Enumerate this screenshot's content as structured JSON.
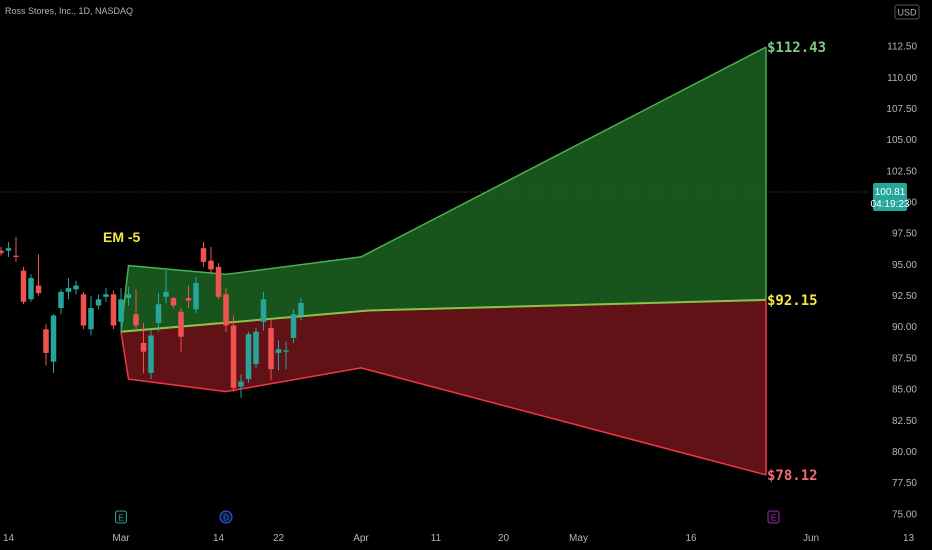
{
  "header": {
    "symbol_title": "Ross Stores, Inc., 1D, NASDAQ",
    "currency": "USD"
  },
  "price_tag": {
    "price": "100.81",
    "countdown": "04:19:23"
  },
  "colors": {
    "background": "#000000",
    "up": "#26a69a",
    "down": "#ef5350",
    "upper_band": "#4caf50",
    "lower_band": "#f23645",
    "mid_line": "#8bc34a",
    "upper_fill": "#1b5e20",
    "lower_fill": "#6b1418",
    "target_upper": "#81c784",
    "target_mid": "#f5e642",
    "target_lower": "#f06c75"
  },
  "annotation": {
    "em_label": "EM -5"
  },
  "chart_data": {
    "type": "candlestick",
    "title": "",
    "ylim": [
      74.5,
      114.2
    ],
    "y_ticks": [
      75.0,
      77.5,
      80.0,
      82.5,
      85.0,
      87.5,
      90.0,
      92.5,
      95.0,
      97.5,
      100.0,
      102.5,
      105.0,
      107.5,
      110.0,
      112.5
    ],
    "x_tick_labels": [
      "14",
      "Mar",
      "14",
      "22",
      "Apr",
      "11",
      "20",
      "May",
      "16",
      "Jun",
      "13"
    ],
    "x_tick_days": [
      -15,
      0,
      13,
      21,
      32,
      42,
      51,
      61,
      76,
      92,
      105
    ],
    "x_range_days": [
      -20,
      107
    ],
    "last_price": 100.81,
    "candles": [
      {
        "day": -21,
        "o": 96.3,
        "h": 98.0,
        "l": 93.8,
        "c": 97.2
      },
      {
        "day": -20,
        "o": 94.1,
        "h": 97.2,
        "l": 93.7,
        "c": 96.8
      },
      {
        "day": -19,
        "o": 96.7,
        "h": 97.0,
        "l": 93.2,
        "c": 94.3
      },
      {
        "day": -18,
        "o": 94.8,
        "h": 96.1,
        "l": 93.8,
        "c": 94.5
      },
      {
        "day": -17,
        "o": 95.6,
        "h": 97.0,
        "l": 94.8,
        "c": 96.2
      },
      {
        "day": -16,
        "o": 96.1,
        "h": 96.4,
        "l": 95.7,
        "c": 95.9
      },
      {
        "day": -15,
        "o": 96.1,
        "h": 96.8,
        "l": 95.6,
        "c": 96.3
      },
      {
        "day": -14,
        "o": 95.7,
        "h": 97.2,
        "l": 95.2,
        "c": 95.6
      },
      {
        "day": -13,
        "o": 94.5,
        "h": 94.8,
        "l": 91.8,
        "c": 92.0
      },
      {
        "day": -12,
        "o": 92.2,
        "h": 94.2,
        "l": 92.0,
        "c": 93.9
      },
      {
        "day": -11,
        "o": 93.3,
        "h": 95.8,
        "l": 92.5,
        "c": 92.7
      },
      {
        "day": -10,
        "o": 89.8,
        "h": 90.2,
        "l": 86.9,
        "c": 87.9
      },
      {
        "day": -9,
        "o": 87.2,
        "h": 91.0,
        "l": 86.3,
        "c": 90.9
      },
      {
        "day": -8,
        "o": 91.5,
        "h": 93.0,
        "l": 91.0,
        "c": 92.8
      },
      {
        "day": -7,
        "o": 92.8,
        "h": 93.9,
        "l": 92.2,
        "c": 93.1
      },
      {
        "day": -6,
        "o": 93.0,
        "h": 93.7,
        "l": 92.6,
        "c": 93.3
      },
      {
        "day": -5,
        "o": 92.6,
        "h": 92.8,
        "l": 89.8,
        "c": 90.1
      },
      {
        "day": -4,
        "o": 89.8,
        "h": 92.5,
        "l": 89.3,
        "c": 91.5
      },
      {
        "day": -3,
        "o": 91.7,
        "h": 92.6,
        "l": 91.4,
        "c": 92.2
      },
      {
        "day": -2,
        "o": 92.4,
        "h": 93.1,
        "l": 92.0,
        "c": 92.6
      },
      {
        "day": -1,
        "o": 92.6,
        "h": 92.9,
        "l": 89.8,
        "c": 90.1
      },
      {
        "day": 0,
        "o": 90.4,
        "h": 93.1,
        "l": 89.6,
        "c": 92.2
      },
      {
        "day": 1,
        "o": 92.3,
        "h": 93.2,
        "l": 91.7,
        "c": 92.6
      },
      {
        "day": 2,
        "o": 91.0,
        "h": 93.0,
        "l": 89.7,
        "c": 90.1
      },
      {
        "day": 3,
        "o": 88.7,
        "h": 90.3,
        "l": 86.3,
        "c": 88.0
      },
      {
        "day": 4,
        "o": 86.3,
        "h": 89.7,
        "l": 85.8,
        "c": 89.3
      },
      {
        "day": 5,
        "o": 90.3,
        "h": 92.7,
        "l": 89.6,
        "c": 91.8
      },
      {
        "day": 6,
        "o": 92.4,
        "h": 94.5,
        "l": 91.9,
        "c": 92.8
      },
      {
        "day": 7,
        "o": 92.3,
        "h": 92.4,
        "l": 91.5,
        "c": 91.7
      },
      {
        "day": 8,
        "o": 91.2,
        "h": 91.5,
        "l": 88.0,
        "c": 89.2
      },
      {
        "day": 9,
        "o": 92.3,
        "h": 93.3,
        "l": 91.5,
        "c": 92.1
      },
      {
        "day": 10,
        "o": 91.4,
        "h": 94.0,
        "l": 91.1,
        "c": 93.5
      },
      {
        "day": 11,
        "o": 96.3,
        "h": 96.8,
        "l": 94.8,
        "c": 95.2
      },
      {
        "day": 12,
        "o": 95.3,
        "h": 96.4,
        "l": 94.3,
        "c": 94.6
      },
      {
        "day": 13,
        "o": 94.8,
        "h": 95.1,
        "l": 92.2,
        "c": 92.4
      },
      {
        "day": 14,
        "o": 92.6,
        "h": 93.1,
        "l": 89.6,
        "c": 90.1
      },
      {
        "day": 15,
        "o": 90.1,
        "h": 90.9,
        "l": 84.8,
        "c": 85.1
      },
      {
        "day": 16,
        "o": 85.2,
        "h": 86.2,
        "l": 84.3,
        "c": 85.6
      },
      {
        "day": 17,
        "o": 85.8,
        "h": 89.6,
        "l": 85.5,
        "c": 89.4
      },
      {
        "day": 18,
        "o": 87.0,
        "h": 89.9,
        "l": 86.7,
        "c": 89.6
      },
      {
        "day": 19,
        "o": 90.4,
        "h": 92.8,
        "l": 89.7,
        "c": 92.2
      },
      {
        "day": 20,
        "o": 89.9,
        "h": 90.6,
        "l": 85.7,
        "c": 86.6
      },
      {
        "day": 21,
        "o": 87.9,
        "h": 88.9,
        "l": 86.5,
        "c": 88.2
      },
      {
        "day": 22,
        "o": 88.0,
        "h": 88.8,
        "l": 86.6,
        "c": 88.1
      },
      {
        "day": 23,
        "o": 89.1,
        "h": 91.4,
        "l": 88.7,
        "c": 91.0
      },
      {
        "day": 24,
        "o": 90.9,
        "h": 92.3,
        "l": 90.5,
        "c": 91.9
      }
    ],
    "bands": {
      "anchor_day": 0,
      "anchor_price": 89.6,
      "end_day": 86,
      "upper": [
        {
          "day": 0,
          "value": 89.6
        },
        {
          "day": 1,
          "value": 94.9
        },
        {
          "day": 14,
          "value": 94.2
        },
        {
          "day": 32,
          "value": 95.6
        },
        {
          "day": 86,
          "value": 112.43
        }
      ],
      "mid": [
        {
          "day": 0,
          "value": 89.6
        },
        {
          "day": 33,
          "value": 91.3
        },
        {
          "day": 86,
          "value": 92.15
        }
      ],
      "lower": [
        {
          "day": 0,
          "value": 89.6
        },
        {
          "day": 1,
          "value": 85.8
        },
        {
          "day": 14,
          "value": 84.8
        },
        {
          "day": 32,
          "value": 86.7
        },
        {
          "day": 86,
          "value": 78.12
        }
      ]
    },
    "targets": [
      {
        "label": "$112.43",
        "value": 112.43,
        "role": "upper"
      },
      {
        "label": "$92.15",
        "value": 92.15,
        "role": "mid"
      },
      {
        "label": "$78.12",
        "value": 78.12,
        "role": "lower"
      }
    ],
    "event_markers": [
      {
        "day": 0,
        "label": "E",
        "kind": "earnings"
      },
      {
        "day": 14,
        "label": "D",
        "kind": "dividend"
      },
      {
        "day": 87,
        "label": "E",
        "kind": "earnings-upcoming"
      }
    ]
  }
}
